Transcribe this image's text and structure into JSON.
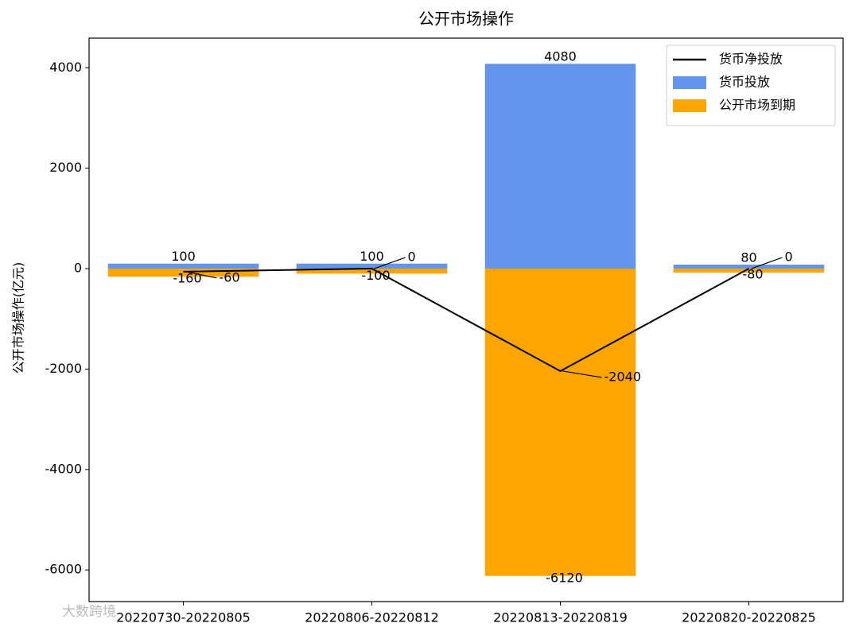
{
  "chart_data": {
    "type": "bar",
    "title": "公开市场操作",
    "y_label": "公开市场操作(亿元)",
    "categories": [
      "20220730-20220805",
      "20220806-20220812",
      "20220813-20220819",
      "20220820-20220825"
    ],
    "series": [
      {
        "name": "货币净投放",
        "type": "line",
        "color": "#000000",
        "values": [
          -60,
          0,
          -2040,
          0
        ]
      },
      {
        "name": "货币投放",
        "type": "bar",
        "color": "#6495ed",
        "values": [
          100,
          100,
          4080,
          80
        ]
      },
      {
        "name": "公开市场到期",
        "type": "bar",
        "color": "#ffa500",
        "values": [
          -160,
          -100,
          -6120,
          -80
        ]
      }
    ],
    "ylim": [
      -6630,
      4590
    ],
    "yticks": [
      -6000,
      -4000,
      -2000,
      0,
      2000,
      4000
    ],
    "legend": "upper right",
    "watermark": "大数跨境"
  }
}
